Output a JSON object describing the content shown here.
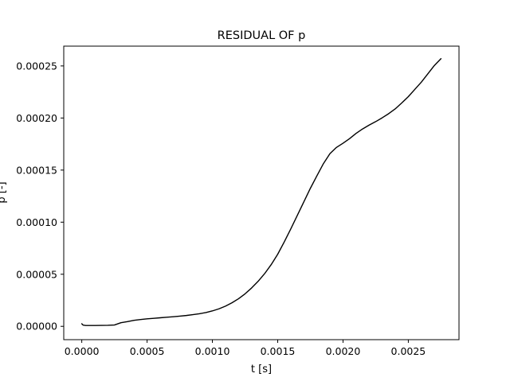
{
  "chart_data": {
    "type": "line",
    "title": "RESIDUAL OF p",
    "xlabel": "t [s]",
    "ylabel": "p [-]",
    "xlim": [
      -0.000138,
      0.002888
    ],
    "ylim": [
      -1.28e-05,
      0.000269
    ],
    "xticks": [
      0.0,
      0.0005,
      0.001,
      0.0015,
      0.002,
      0.0025
    ],
    "xtick_labels": [
      "0.0000",
      "0.0005",
      "0.0010",
      "0.0015",
      "0.0020",
      "0.0025"
    ],
    "yticks": [
      0.0,
      5e-05,
      0.0001,
      0.00015,
      0.0002,
      0.00025
    ],
    "ytick_labels": [
      "0.00000",
      "0.00005",
      "0.00010",
      "0.00015",
      "0.00020",
      "0.00025"
    ],
    "grid": false,
    "series": [
      {
        "color": "#000000",
        "x": [
          0.0,
          1e-05,
          3e-05,
          5e-05,
          0.0001,
          0.00015,
          0.0002,
          0.00025,
          0.0003,
          0.00035,
          0.0004,
          0.00045,
          0.0005,
          0.00055,
          0.0006,
          0.00065,
          0.0007,
          0.00075,
          0.0008,
          0.00085,
          0.0009,
          0.00095,
          0.001,
          0.00105,
          0.0011,
          0.00115,
          0.0012,
          0.00125,
          0.0013,
          0.00135,
          0.0014,
          0.00145,
          0.0015,
          0.00155,
          0.0016,
          0.00165,
          0.0017,
          0.00175,
          0.0018,
          0.00185,
          0.0019,
          0.00195,
          0.002,
          0.00205,
          0.0021,
          0.00215,
          0.0022,
          0.00225,
          0.0023,
          0.00235,
          0.0024,
          0.00245,
          0.0025,
          0.00255,
          0.0026,
          0.00265,
          0.0027,
          0.00275
        ],
        "y": [
          2.5e-06,
          1.2e-06,
          8e-07,
          8e-07,
          8e-07,
          9e-07,
          1e-06,
          1.3e-06,
          3.5e-06,
          4.5e-06,
          5.8e-06,
          6.5e-06,
          7.2e-06,
          7.7e-06,
          8.2e-06,
          8.7e-06,
          9.2e-06,
          9.8e-06,
          1.04e-05,
          1.12e-05,
          1.21e-05,
          1.32e-05,
          1.48e-05,
          1.68e-05,
          1.94e-05,
          2.26e-05,
          2.65e-05,
          3.12e-05,
          3.68e-05,
          4.32e-05,
          5.06e-05,
          5.92e-05,
          6.92e-05,
          8.1e-05,
          9.35e-05,
          0.0001065,
          0.0001195,
          0.0001325,
          0.0001445,
          0.0001562,
          0.0001658,
          0.0001718,
          0.0001758,
          0.0001802,
          0.0001852,
          0.0001895,
          0.0001932,
          0.0001965,
          0.0002002,
          0.0002042,
          0.0002088,
          0.0002145,
          0.0002205,
          0.0002275,
          0.0002345,
          0.0002425,
          0.0002505,
          0.000257
        ]
      }
    ]
  }
}
